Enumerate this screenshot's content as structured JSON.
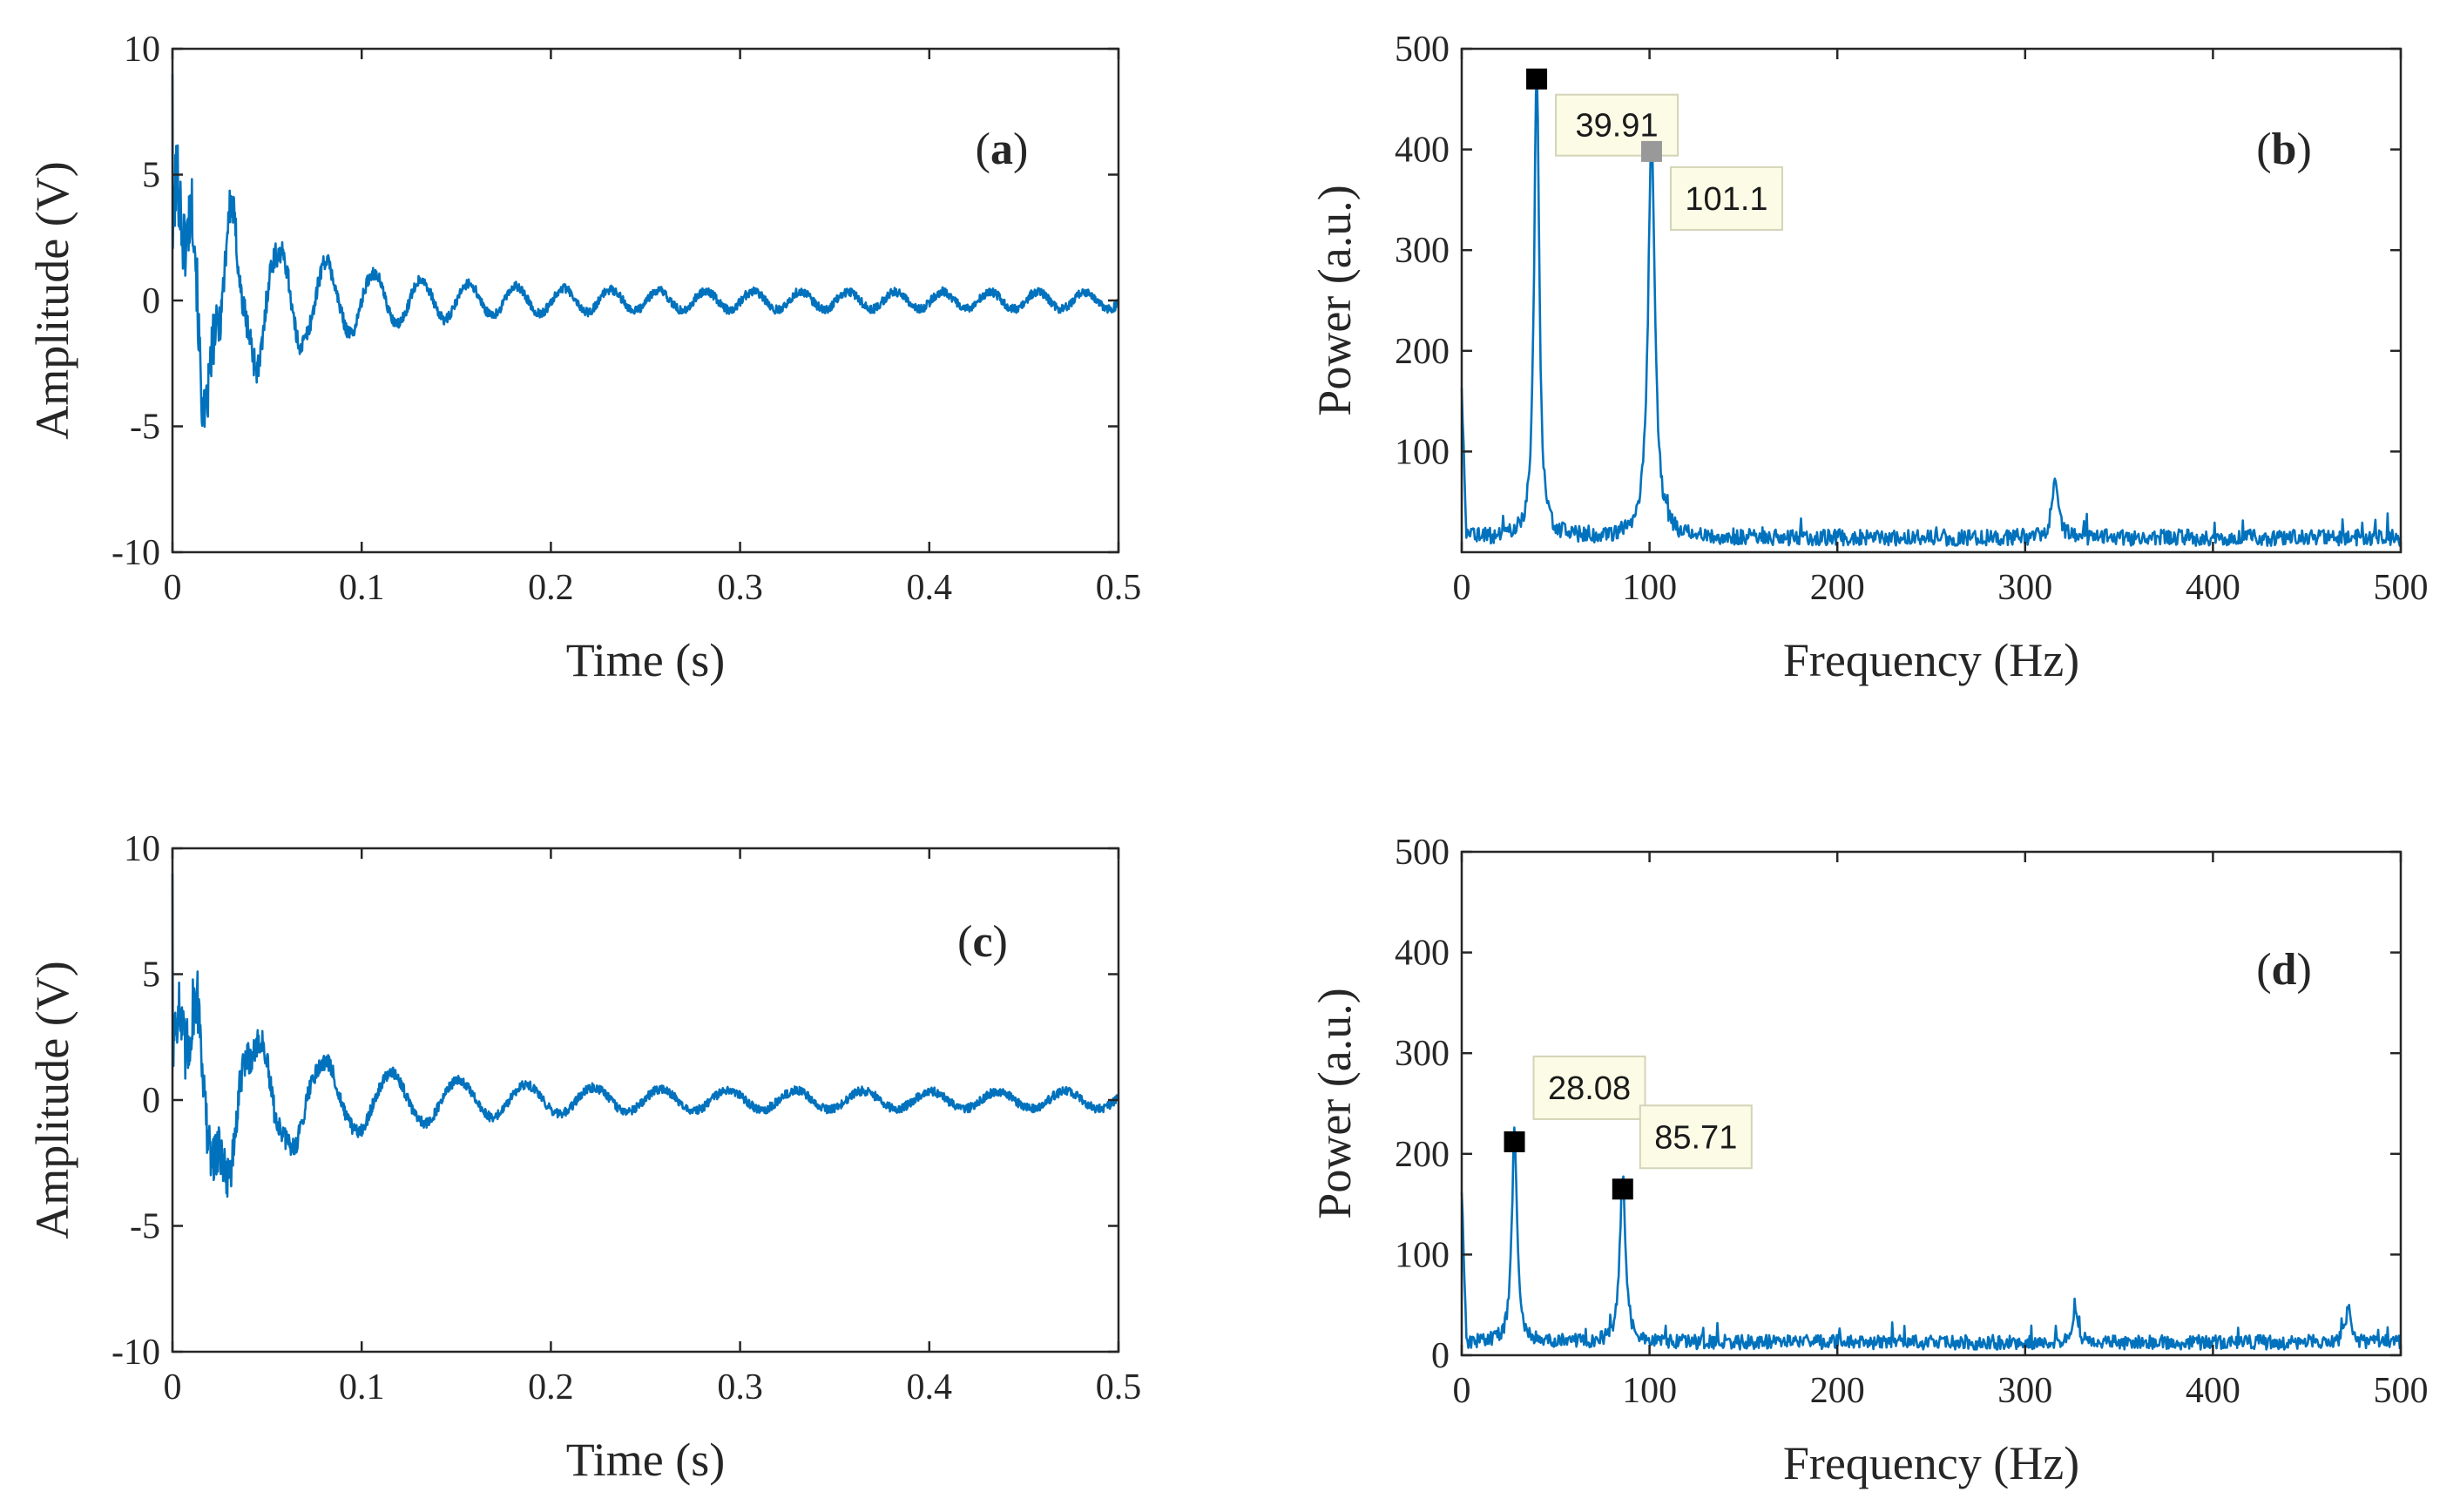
{
  "colors": {
    "signal": "#0072bd",
    "axis": "#262626",
    "marker_primary": "#000000",
    "marker_secondary": "#999999",
    "tooltip_fill": "#fbfbe6"
  },
  "chart_data": [
    {
      "id": "a",
      "panel_label": "a",
      "type": "line",
      "xlabel": "Time (s)",
      "ylabel": "Amplitude (V)",
      "xlim": [
        0,
        0.5
      ],
      "ylim": [
        -10,
        10
      ],
      "xticks": [
        0,
        0.1,
        0.2,
        0.3,
        0.4,
        0.5
      ],
      "xtick_labels": [
        "0",
        "0.1",
        "0.2",
        "0.3",
        "0.4",
        "0.5"
      ],
      "yticks": [
        -10,
        -5,
        0,
        5,
        10
      ],
      "ytick_labels": [
        "-10",
        "-5",
        "0",
        "5",
        "10"
      ],
      "signal": {
        "kind": "damped_oscillation",
        "initial_amplitude": 6.5,
        "final_amplitude": 0.45,
        "decay_time_s": 0.06,
        "components_hz": [
          39.91,
          101.1
        ],
        "sample_points": 2000
      }
    },
    {
      "id": "b",
      "panel_label": "b",
      "type": "line",
      "xlabel": "Frequency (Hz)",
      "ylabel": "Power (a.u.)",
      "xlim": [
        0,
        500
      ],
      "ylim": [
        0,
        500
      ],
      "xticks": [
        0,
        100,
        200,
        300,
        400,
        500
      ],
      "xtick_labels": [
        "0",
        "100",
        "200",
        "300",
        "400",
        "500"
      ],
      "yticks": [
        100,
        200,
        300,
        400,
        500
      ],
      "ytick_labels": [
        "100",
        "200",
        "300",
        "400",
        "500"
      ],
      "spectrum": {
        "noise_floor": 18,
        "peaks": [
          {
            "x": 39.91,
            "y": 470,
            "width_hz": 1.6
          },
          {
            "x": 101.1,
            "y": 398,
            "width_hz": 2.2
          },
          {
            "x": 316,
            "y": 60,
            "width_hz": 2.0
          }
        ]
      },
      "data_tips": [
        {
          "x": 39.91,
          "y": 470,
          "label": "39.91",
          "marker": "primary"
        },
        {
          "x": 101.1,
          "y": 398,
          "label": "101.1",
          "marker": "secondary"
        }
      ]
    },
    {
      "id": "c",
      "panel_label": "c",
      "type": "line",
      "xlabel": "Time (s)",
      "ylabel": "Amplitude (V)",
      "xlim": [
        0,
        0.5
      ],
      "ylim": [
        -10,
        10
      ],
      "xticks": [
        0,
        0.1,
        0.2,
        0.3,
        0.4,
        0.5
      ],
      "xtick_labels": [
        "0",
        "0.1",
        "0.2",
        "0.3",
        "0.4",
        "0.5"
      ],
      "yticks": [
        -10,
        -5,
        0,
        5,
        10
      ],
      "ytick_labels": [
        "-10",
        "-5",
        "0",
        "5",
        "10"
      ],
      "signal": {
        "kind": "damped_oscillation",
        "initial_amplitude": 5.5,
        "final_amplitude": 0.45,
        "decay_time_s": 0.07,
        "components_hz": [
          28.08,
          85.71
        ],
        "sample_points": 2000
      }
    },
    {
      "id": "d",
      "panel_label": "d",
      "type": "line",
      "xlabel": "Frequency (Hz)",
      "ylabel": "Power (a.u.)",
      "xlim": [
        0,
        500
      ],
      "ylim": [
        0,
        500
      ],
      "xticks": [
        0,
        100,
        200,
        300,
        400,
        500
      ],
      "xtick_labels": [
        "0",
        "100",
        "200",
        "300",
        "400",
        "500"
      ],
      "yticks": [
        0,
        100,
        200,
        300,
        400,
        500
      ],
      "ytick_labels": [
        "0",
        "100",
        "200",
        "300",
        "400",
        "500"
      ],
      "spectrum": {
        "noise_floor": 16,
        "peaks": [
          {
            "x": 28.08,
            "y": 212,
            "width_hz": 1.6
          },
          {
            "x": 85.71,
            "y": 165,
            "width_hz": 1.8
          },
          {
            "x": 327,
            "y": 32,
            "width_hz": 1.5
          },
          {
            "x": 472,
            "y": 34,
            "width_hz": 1.5
          }
        ]
      },
      "data_tips": [
        {
          "x": 28.08,
          "y": 212,
          "label": "28.08",
          "marker": "primary"
        },
        {
          "x": 85.71,
          "y": 165,
          "label": "85.71",
          "marker": "primary"
        }
      ]
    }
  ]
}
